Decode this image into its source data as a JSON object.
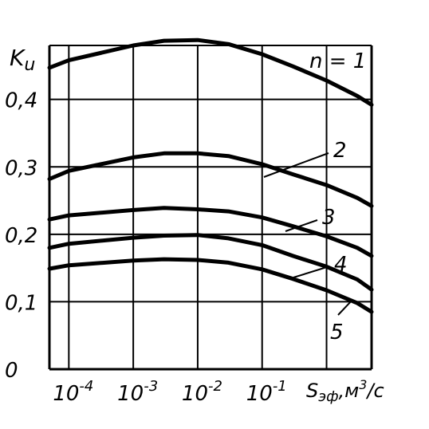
{
  "chart_data": {
    "type": "line",
    "xlabel_base": "S",
    "xlabel_sub": "эф",
    "xlabel_unit": ",м",
    "xlabel_unit_sup": "3",
    "xlabel_unit_tail": "/с",
    "ylabel_base": "K",
    "ylabel_sub": "u",
    "x_scale": "log",
    "xlim": [
      5e-05,
      5
    ],
    "ylim": [
      0,
      0.48
    ],
    "grid": true,
    "x_ticks": [
      {
        "value": 0.0001,
        "base": "10",
        "exp": "-4"
      },
      {
        "value": 0.001,
        "base": "10",
        "exp": "-3"
      },
      {
        "value": 0.01,
        "base": "10",
        "exp": "-2"
      },
      {
        "value": 0.1,
        "base": "10",
        "exp": "-1"
      }
    ],
    "y_ticks": [
      {
        "value": 0,
        "label": "0"
      },
      {
        "value": 0.1,
        "label": "0,1"
      },
      {
        "value": 0.2,
        "label": "0,2"
      },
      {
        "value": 0.3,
        "label": "0,3"
      },
      {
        "value": 0.4,
        "label": "0,4"
      }
    ],
    "series": [
      {
        "name": "n = 1",
        "x": [
          5e-05,
          0.0001,
          0.001,
          0.003,
          0.01,
          0.03,
          0.1,
          0.3,
          1,
          3,
          5
        ],
        "y": [
          0.447,
          0.458,
          0.48,
          0.487,
          0.488,
          0.482,
          0.467,
          0.449,
          0.428,
          0.405,
          0.392
        ]
      },
      {
        "name": "2",
        "x": [
          5e-05,
          0.0001,
          0.001,
          0.003,
          0.01,
          0.03,
          0.1,
          0.3,
          1,
          3,
          5
        ],
        "y": [
          0.282,
          0.294,
          0.314,
          0.32,
          0.32,
          0.316,
          0.304,
          0.289,
          0.273,
          0.254,
          0.242
        ]
      },
      {
        "name": "3",
        "x": [
          5e-05,
          0.0001,
          0.001,
          0.003,
          0.01,
          0.03,
          0.1,
          0.3,
          1,
          3,
          5
        ],
        "y": [
          0.222,
          0.228,
          0.236,
          0.239,
          0.237,
          0.234,
          0.225,
          0.212,
          0.197,
          0.18,
          0.168
        ]
      },
      {
        "name": "4",
        "x": [
          5e-05,
          0.0001,
          0.001,
          0.003,
          0.01,
          0.03,
          0.1,
          0.3,
          1,
          3,
          5
        ],
        "y": [
          0.18,
          0.186,
          0.195,
          0.198,
          0.199,
          0.194,
          0.184,
          0.168,
          0.152,
          0.133,
          0.118
        ]
      },
      {
        "name": "5",
        "x": [
          5e-05,
          0.0001,
          0.001,
          0.003,
          0.01,
          0.03,
          0.1,
          0.3,
          1,
          3,
          5
        ],
        "y": [
          0.149,
          0.154,
          0.161,
          0.163,
          0.162,
          0.158,
          0.148,
          0.134,
          0.117,
          0.098,
          0.085
        ]
      }
    ]
  }
}
